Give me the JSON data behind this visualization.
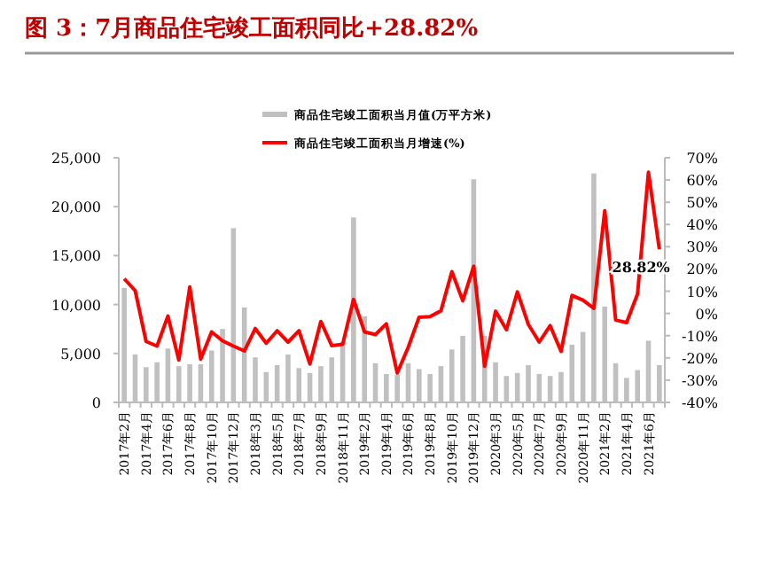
{
  "chart_data": {
    "type": "bar",
    "title": "图 3：7月商品住宅竣工面积同比+28.82%",
    "categories": [
      "2017年2月",
      null,
      "2017年4月",
      null,
      "2017年6月",
      null,
      "2017年8月",
      null,
      "2017年10月",
      null,
      "2017年12月",
      null,
      "2018年3月",
      null,
      "2018年5月",
      null,
      "2018年7月",
      null,
      "2018年9月",
      null,
      "2018年11月",
      null,
      "2019年2月",
      null,
      "2019年4月",
      null,
      "2019年6月",
      null,
      "2019年8月",
      null,
      "2019年10月",
      null,
      "2019年12月",
      null,
      "2020年3月",
      null,
      "2020年5月",
      null,
      "2020年7月",
      null,
      "2020年9月",
      null,
      "2020年11月",
      null,
      "2021年2月",
      null,
      "2021年4月",
      null,
      "2021年6月",
      null
    ],
    "series": [
      {
        "name": "商品住宅竣工面积当月值(万平方米)",
        "color": "#c0c0c0",
        "values": [
          11700,
          4900,
          3600,
          4100,
          5500,
          3700,
          3900,
          3900,
          5300,
          7500,
          17800,
          9700,
          4600,
          3100,
          3800,
          4900,
          3500,
          3000,
          3700,
          4600,
          6200,
          18900,
          8800,
          4000,
          2900,
          2800,
          4000,
          3400,
          2900,
          3700,
          5400,
          6800,
          22800,
          6800,
          4100,
          2700,
          3000,
          3800,
          2900,
          2700,
          3100,
          5900,
          7200,
          23400,
          9800,
          4000,
          2500,
          3300,
          6300,
          3800
        ]
      },
      {
        "name": "商品住宅竣工面积当月增速(%)",
        "type": "line",
        "axis": "y2",
        "color": "#ff0000",
        "values": [
          15.6,
          10.3,
          -12.6,
          -14.7,
          -1.2,
          -21,
          11.9,
          -20.6,
          -8.3,
          -12.3,
          -14.7,
          -16.9,
          -6.8,
          -13.4,
          -7.8,
          -12.9,
          -7.8,
          -22.7,
          -3.6,
          -14.5,
          -13.9,
          6.3,
          -8.3,
          -9.5,
          -4.7,
          -26.8,
          -15.3,
          -1.7,
          -1.4,
          1.2,
          18.8,
          5.7,
          21.2,
          -23.8,
          1.0,
          -7.3,
          9.7,
          -4.9,
          -12.9,
          -5.5,
          -17.1,
          8.1,
          6.0,
          2.3,
          46.2,
          -3.0,
          -4.1,
          8.7,
          63.5,
          28.82
        ],
        "value_labels": [
          null,
          null,
          null,
          null,
          null,
          null,
          null,
          null,
          null,
          null,
          null,
          null,
          null,
          null,
          null,
          null,
          null,
          null,
          null,
          null,
          null,
          null,
          null,
          null,
          null,
          null,
          null,
          null,
          null,
          null,
          null,
          null,
          null,
          null,
          null,
          null,
          null,
          null,
          null,
          null,
          null,
          null,
          null,
          null,
          null,
          null,
          null,
          null,
          null,
          "28.82%"
        ]
      }
    ],
    "ylim": [
      0,
      25000
    ],
    "yticks": [
      0,
      {
        "value": 5000,
        "label": "5,000"
      },
      {
        "value": 10000,
        "label": "10,000"
      },
      {
        "value": 15000,
        "label": "15,000"
      },
      {
        "value": 20000,
        "label": "20,000"
      },
      {
        "value": 25000,
        "label": "25,000"
      }
    ],
    "y2lim": [
      -40,
      70
    ],
    "y2ticks": [
      {
        "value": -40,
        "label": "-40%"
      },
      {
        "value": -30,
        "label": "-30%"
      },
      {
        "value": -20,
        "label": "-20%"
      },
      {
        "value": -10,
        "label": "-10%"
      },
      {
        "value": 0,
        "label": "0%"
      },
      {
        "value": 10,
        "label": "10%"
      },
      {
        "value": 20,
        "label": "20%"
      },
      {
        "value": 30,
        "label": "30%"
      },
      {
        "value": 40,
        "label": "40%"
      },
      {
        "value": 50,
        "label": "50%"
      },
      {
        "value": 60,
        "label": "60%"
      },
      {
        "value": 70,
        "label": "70%"
      }
    ],
    "legend": "top"
  }
}
